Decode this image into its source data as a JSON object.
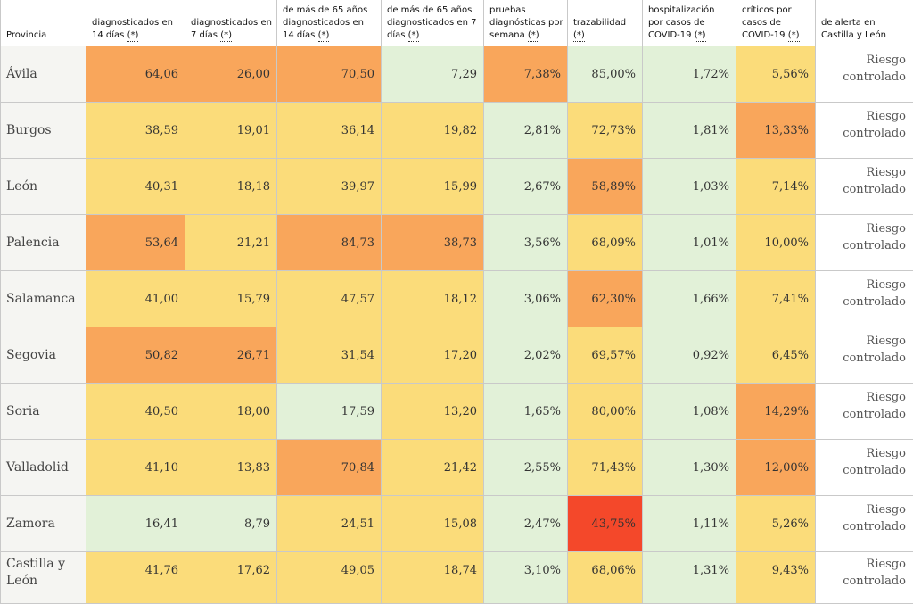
{
  "headers": [
    {
      "text": "Provincia",
      "q": ""
    },
    {
      "text": "diagnosticados en 14 días",
      "q": "(*)"
    },
    {
      "text": "diagnosticados en 7 días",
      "q": "(*)"
    },
    {
      "text": "de más de 65 años diagnosticados en 14 días",
      "q": "(*)"
    },
    {
      "text": "de más de 65 años diagnosticados en 7 días",
      "q": "(*)"
    },
    {
      "text": "pruebas diagnósticas por semana",
      "q": "(*)"
    },
    {
      "text": "trazabilidad",
      "q": "(*)"
    },
    {
      "text": "hospitalización por casos de COVID-19",
      "q": "(*)"
    },
    {
      "text": "críticos por casos de COVID-19",
      "q": "(*)"
    },
    {
      "text": "de alerta en Castilla y León",
      "q": ""
    }
  ],
  "colors": {
    "green": "#e2f1d8",
    "yellow": "#fbdc7a",
    "orange": "#f9a65b",
    "red": "#f4482a"
  },
  "rows": [
    {
      "province": "Ávila",
      "status": "Riesgo controlado",
      "values": [
        "64,06",
        "26,00",
        "70,50",
        "7,29",
        "7,38%",
        "85,00%",
        "1,72%",
        "5,56%"
      ],
      "levels": [
        "orange",
        "orange",
        "orange",
        "green",
        "orange",
        "green",
        "green",
        "yellow"
      ]
    },
    {
      "province": "Burgos",
      "status": "Riesgo controlado",
      "values": [
        "38,59",
        "19,01",
        "36,14",
        "19,82",
        "2,81%",
        "72,73%",
        "1,81%",
        "13,33%"
      ],
      "levels": [
        "yellow",
        "yellow",
        "yellow",
        "yellow",
        "green",
        "yellow",
        "green",
        "orange"
      ]
    },
    {
      "province": "León",
      "status": "Riesgo controlado",
      "values": [
        "40,31",
        "18,18",
        "39,97",
        "15,99",
        "2,67%",
        "58,89%",
        "1,03%",
        "7,14%"
      ],
      "levels": [
        "yellow",
        "yellow",
        "yellow",
        "yellow",
        "green",
        "orange",
        "green",
        "yellow"
      ]
    },
    {
      "province": "Palencia",
      "status": "Riesgo controlado",
      "values": [
        "53,64",
        "21,21",
        "84,73",
        "38,73",
        "3,56%",
        "68,09%",
        "1,01%",
        "10,00%"
      ],
      "levels": [
        "orange",
        "yellow",
        "orange",
        "orange",
        "green",
        "yellow",
        "green",
        "yellow"
      ]
    },
    {
      "province": "Salamanca",
      "status": "Riesgo controlado",
      "values": [
        "41,00",
        "15,79",
        "47,57",
        "18,12",
        "3,06%",
        "62,30%",
        "1,66%",
        "7,41%"
      ],
      "levels": [
        "yellow",
        "yellow",
        "yellow",
        "yellow",
        "green",
        "orange",
        "green",
        "yellow"
      ]
    },
    {
      "province": "Segovia",
      "status": "Riesgo controlado",
      "values": [
        "50,82",
        "26,71",
        "31,54",
        "17,20",
        "2,02%",
        "69,57%",
        "0,92%",
        "6,45%"
      ],
      "levels": [
        "orange",
        "orange",
        "yellow",
        "yellow",
        "green",
        "yellow",
        "green",
        "yellow"
      ]
    },
    {
      "province": "Soria",
      "status": "Riesgo controlado",
      "values": [
        "40,50",
        "18,00",
        "17,59",
        "13,20",
        "1,65%",
        "80,00%",
        "1,08%",
        "14,29%"
      ],
      "levels": [
        "yellow",
        "yellow",
        "green",
        "yellow",
        "green",
        "yellow",
        "green",
        "orange"
      ]
    },
    {
      "province": "Valladolid",
      "status": "Riesgo controlado",
      "values": [
        "41,10",
        "13,83",
        "70,84",
        "21,42",
        "2,55%",
        "71,43%",
        "1,30%",
        "12,00%"
      ],
      "levels": [
        "yellow",
        "yellow",
        "orange",
        "yellow",
        "green",
        "yellow",
        "green",
        "orange"
      ]
    },
    {
      "province": "Zamora",
      "status": "Riesgo controlado",
      "values": [
        "16,41",
        "8,79",
        "24,51",
        "15,08",
        "2,47%",
        "43,75%",
        "1,11%",
        "5,26%"
      ],
      "levels": [
        "green",
        "green",
        "yellow",
        "yellow",
        "green",
        "red",
        "green",
        "yellow"
      ]
    },
    {
      "province": "Castilla y León",
      "status": "Riesgo controlado",
      "values": [
        "41,76",
        "17,62",
        "49,05",
        "18,74",
        "3,10%",
        "68,06%",
        "1,31%",
        "9,43%"
      ],
      "levels": [
        "yellow",
        "yellow",
        "yellow",
        "yellow",
        "green",
        "yellow",
        "green",
        "yellow"
      ]
    }
  ]
}
